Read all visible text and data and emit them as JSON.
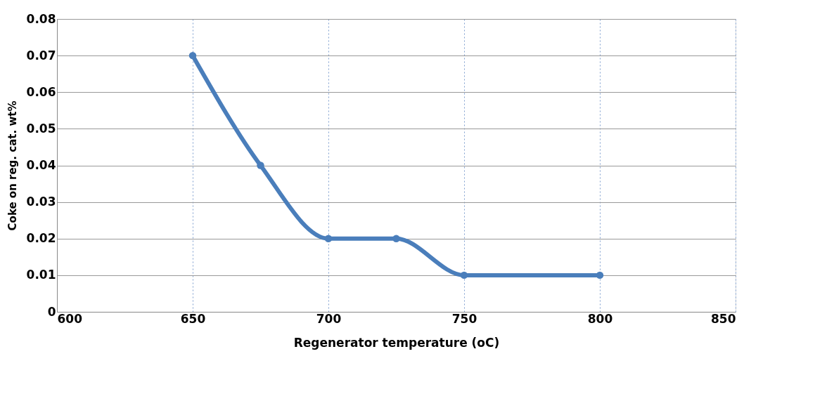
{
  "chart_data": {
    "type": "line",
    "xlabel": "Regenerator temperature (oC)",
    "ylabel": "Coke on reg. cat. wt%",
    "x": [
      650,
      675,
      700,
      725,
      750,
      800
    ],
    "series": [
      {
        "color": "#4a7ebb",
        "values": [
          0.07,
          0.04,
          0.02,
          0.02,
          0.01,
          0.01
        ]
      }
    ],
    "xlim": [
      600,
      850
    ],
    "xticks": [
      600,
      650,
      700,
      750,
      800,
      850
    ],
    "ylim": [
      0,
      0.08
    ],
    "yticks": [
      0,
      0.01,
      0.02,
      0.03,
      0.04,
      0.05,
      0.06,
      0.07,
      0.08
    ],
    "grid": true,
    "marker": "circle",
    "line_style": "solid"
  }
}
